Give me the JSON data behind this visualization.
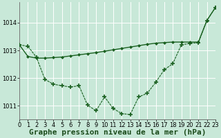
{
  "title": "Graphe pression niveau de la mer (hPa)",
  "bg_color": "#c8e8d8",
  "grid_color": "#b0d8c8",
  "line_color": "#1a6020",
  "xlim": [
    0,
    23
  ],
  "ylim": [
    1010.5,
    1014.75
  ],
  "yticks": [
    1011,
    1012,
    1013,
    1014
  ],
  "xticks": [
    0,
    1,
    2,
    3,
    4,
    5,
    6,
    7,
    8,
    9,
    10,
    11,
    12,
    13,
    14,
    15,
    16,
    17,
    18,
    19,
    20,
    21,
    22,
    23
  ],
  "series1_y": [
    1013.2,
    1013.15,
    1012.75,
    1011.95,
    1011.78,
    1011.72,
    1011.68,
    1011.72,
    1011.02,
    1010.82,
    1011.32,
    1010.9,
    1010.72,
    1010.68,
    1011.32,
    1011.45,
    1011.85,
    1012.3,
    1012.52,
    1013.2,
    1013.25,
    1013.28,
    1014.08,
    1014.55
  ],
  "series2_y": [
    1013.2,
    1012.78,
    1012.72,
    1012.72,
    1012.74,
    1012.76,
    1012.8,
    1012.84,
    1012.88,
    1012.92,
    1012.97,
    1013.02,
    1013.07,
    1013.12,
    1013.17,
    1013.22,
    1013.26,
    1013.28,
    1013.3,
    1013.3,
    1013.3,
    1013.3,
    1014.08,
    1014.55
  ],
  "tick_fontsize": 6,
  "xlabel_fontsize": 8
}
